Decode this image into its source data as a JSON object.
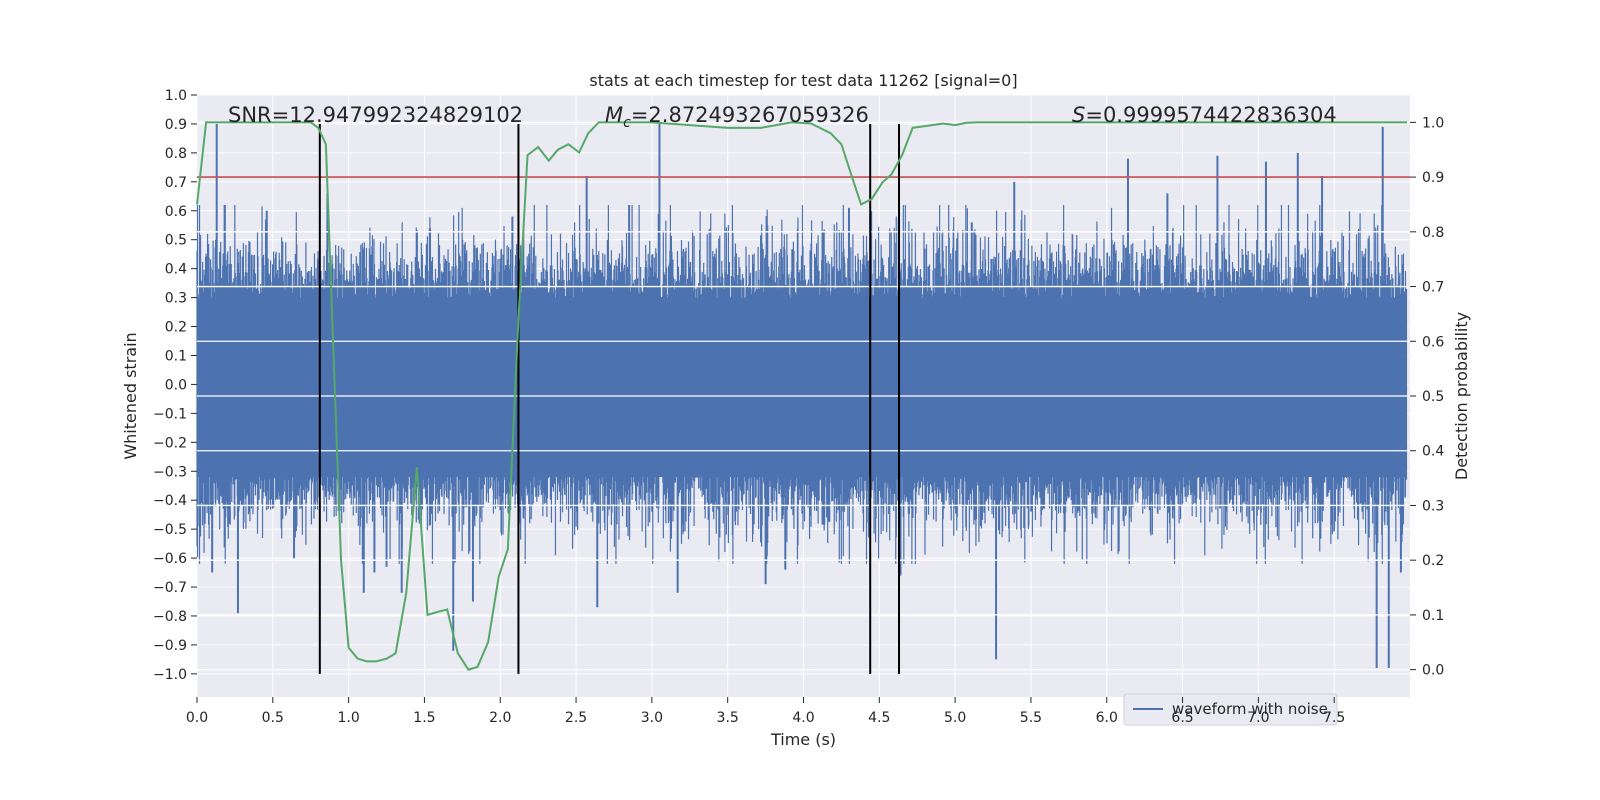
{
  "chart_data": {
    "type": "line",
    "title": "stats at each timestep for test data 11262 [signal=0]",
    "xlabel": "Time (s)",
    "ylabel_left": "Whitened strain",
    "ylabel_right": "Detection probability",
    "xlim": [
      0.0,
      8.0
    ],
    "ylim_left": [
      -1.08,
      1.0
    ],
    "ylim_right": [
      -0.05,
      1.05
    ],
    "x_ticks": [
      "0.0",
      "0.5",
      "1.0",
      "1.5",
      "2.0",
      "2.5",
      "3.0",
      "3.5",
      "4.0",
      "4.5",
      "5.0",
      "5.5",
      "6.0",
      "6.5",
      "7.0",
      "7.5"
    ],
    "y_ticks_left": [
      "1.0",
      "0.9",
      "0.8",
      "0.7",
      "0.6",
      "0.5",
      "0.4",
      "0.3",
      "0.2",
      "0.1",
      "0.0",
      "−0.1",
      "−0.2",
      "−0.3",
      "−0.4",
      "−0.5",
      "−0.6",
      "−0.7",
      "−0.8",
      "−0.9",
      "−1.0"
    ],
    "y_ticks_right": [
      "1.0",
      "0.9",
      "0.8",
      "0.7",
      "0.6",
      "0.5",
      "0.4",
      "0.3",
      "0.2",
      "0.1",
      "0.0"
    ],
    "grid": true,
    "legend": {
      "location": "lower-right",
      "entries": [
        "waveform with noise"
      ]
    },
    "annotations": {
      "snr": "SNR=12.947992324829102",
      "mc_symbol": "M",
      "mc_sub": "c",
      "mc_value": "=2.872493267059326",
      "s_symbol": "S",
      "s_value": "=0.9999574422836304"
    },
    "threshold": {
      "value": 0.9,
      "axis": "right",
      "color": "#c44e52"
    },
    "vertical_lines_x": [
      0.81,
      2.12,
      4.44,
      4.63
    ],
    "waveform": {
      "name": "waveform with noise",
      "color": "#4c72b0",
      "envelope_left_in_s": 0.0,
      "typical_amplitude": 0.3,
      "spikes": [
        {
          "t": 0.13,
          "v": 0.9
        },
        {
          "t": 0.27,
          "v": -0.79
        },
        {
          "t": 0.1,
          "v": -0.65
        },
        {
          "t": 0.46,
          "v": 0.6
        },
        {
          "t": 0.64,
          "v": -0.6
        },
        {
          "t": 0.86,
          "v": 0.66
        },
        {
          "t": 1.1,
          "v": -0.72
        },
        {
          "t": 1.17,
          "v": -0.65
        },
        {
          "t": 1.25,
          "v": -0.63
        },
        {
          "t": 1.35,
          "v": -0.72
        },
        {
          "t": 1.69,
          "v": -0.92
        },
        {
          "t": 1.82,
          "v": -0.75
        },
        {
          "t": 2.08,
          "v": 0.58
        },
        {
          "t": 2.57,
          "v": 0.72
        },
        {
          "t": 2.64,
          "v": -0.77
        },
        {
          "t": 3.05,
          "v": 0.9
        },
        {
          "t": 2.85,
          "v": 0.62
        },
        {
          "t": 3.17,
          "v": -0.72
        },
        {
          "t": 3.75,
          "v": -0.69
        },
        {
          "t": 3.88,
          "v": -0.64
        },
        {
          "t": 4.3,
          "v": 0.61
        },
        {
          "t": 4.64,
          "v": -0.66
        },
        {
          "t": 5.11,
          "v": 0.56
        },
        {
          "t": 5.27,
          "v": -0.95
        },
        {
          "t": 5.39,
          "v": 0.7
        },
        {
          "t": 6.14,
          "v": 0.78
        },
        {
          "t": 6.4,
          "v": 0.66
        },
        {
          "t": 6.73,
          "v": 0.79
        },
        {
          "t": 7.05,
          "v": 0.77
        },
        {
          "t": 7.26,
          "v": 0.8
        },
        {
          "t": 7.42,
          "v": 0.72
        },
        {
          "t": 7.82,
          "v": 0.89
        },
        {
          "t": 7.78,
          "v": -0.98
        },
        {
          "t": 7.86,
          "v": -0.98
        },
        {
          "t": 7.94,
          "v": -0.65
        }
      ]
    },
    "probability": {
      "name": "detection probability",
      "color": "#55a868",
      "x": [
        0.0,
        0.06,
        0.75,
        0.8,
        0.85,
        0.95,
        1.0,
        1.06,
        1.12,
        1.18,
        1.25,
        1.31,
        1.38,
        1.45,
        1.52,
        1.58,
        1.65,
        1.72,
        1.79,
        1.85,
        1.92,
        1.99,
        2.05,
        2.12,
        2.18,
        2.25,
        2.32,
        2.38,
        2.45,
        2.52,
        2.58,
        2.65,
        2.72,
        3.0,
        3.5,
        3.72,
        3.92,
        4.05,
        4.18,
        4.25,
        4.32,
        4.38,
        4.45,
        4.52,
        4.58,
        4.65,
        4.72,
        4.85,
        4.92,
        5.0,
        5.07,
        5.14,
        5.2,
        5.4,
        7.98
      ],
      "y": [
        0.85,
        1.0,
        1.0,
        0.99,
        0.96,
        0.2,
        0.04,
        0.02,
        0.015,
        0.015,
        0.02,
        0.03,
        0.14,
        0.37,
        0.1,
        0.105,
        0.11,
        0.03,
        0.0,
        0.005,
        0.05,
        0.17,
        0.22,
        0.64,
        0.94,
        0.955,
        0.93,
        0.95,
        0.96,
        0.945,
        0.98,
        1.0,
        1.0,
        1.0,
        0.99,
        0.99,
        1.0,
        0.998,
        0.98,
        0.96,
        0.9,
        0.85,
        0.86,
        0.89,
        0.905,
        0.94,
        0.99,
        0.995,
        0.998,
        0.995,
        0.999,
        1.0,
        1.0,
        1.0,
        1.0
      ]
    },
    "ticks_right_values": [
      1.0,
      0.9,
      0.8,
      0.7,
      0.6,
      0.5,
      0.4,
      0.3,
      0.2,
      0.1,
      0.0
    ],
    "ticks_left_values": [
      1.0,
      0.9,
      0.8,
      0.7,
      0.6,
      0.5,
      0.4,
      0.3,
      0.2,
      0.1,
      0.0,
      -0.1,
      -0.2,
      -0.3,
      -0.4,
      -0.5,
      -0.6,
      -0.7,
      -0.8,
      -0.9,
      -1.0
    ],
    "ticks_x_values": [
      0.0,
      0.5,
      1.0,
      1.5,
      2.0,
      2.5,
      3.0,
      3.5,
      4.0,
      4.5,
      5.0,
      5.5,
      6.0,
      6.5,
      7.0,
      7.5
    ]
  },
  "colors": {
    "plot_bg": "#eaeaf2",
    "grid": "#ffffff",
    "vline": "#000000"
  }
}
